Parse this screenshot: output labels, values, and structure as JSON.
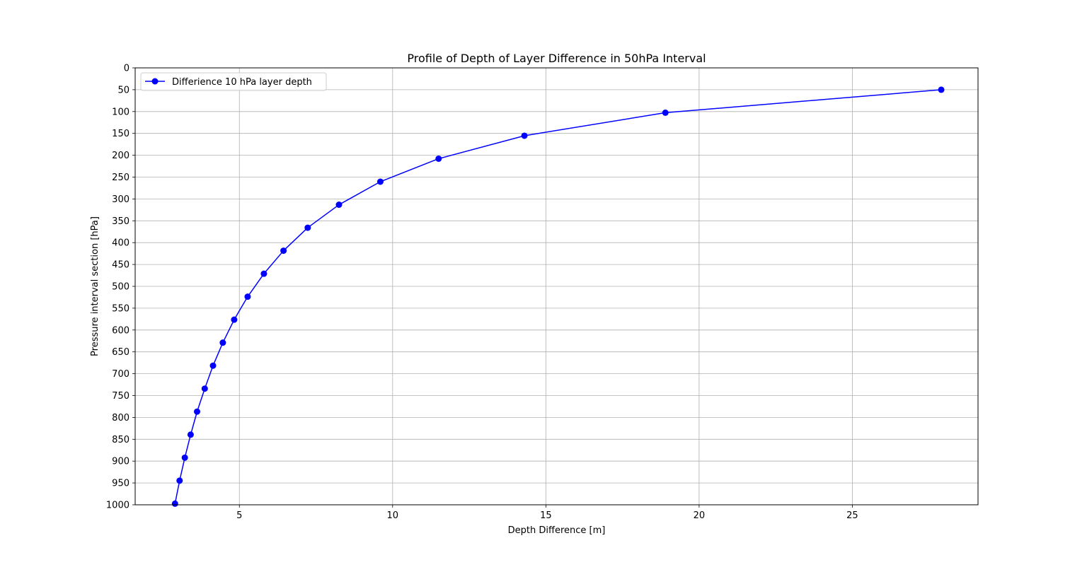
{
  "chart_data": {
    "type": "line",
    "title": "Profile of Depth of Layer Difference in 50hPa Interval",
    "xlabel": "Depth Difference [m]",
    "ylabel": "Pressure interval section [hPa]",
    "xlim": [
      1.6,
      29.1
    ],
    "ylim": [
      1000,
      0
    ],
    "y_inverted": true,
    "xticks": [
      5,
      10,
      15,
      20,
      25
    ],
    "yticks": [
      0,
      50,
      100,
      150,
      200,
      250,
      300,
      350,
      400,
      450,
      500,
      550,
      600,
      650,
      700,
      750,
      800,
      850,
      900,
      950,
      1000
    ],
    "grid": true,
    "legend_position": "upper-left",
    "series": [
      {
        "name": "Differience 10 hPa layer depth",
        "color": "#0000ff",
        "marker": "circle",
        "points": [
          {
            "x": 27.9,
            "y": 50
          },
          {
            "x": 18.9,
            "y": 102.6
          },
          {
            "x": 14.3,
            "y": 155.3
          },
          {
            "x": 11.5,
            "y": 207.9
          },
          {
            "x": 9.6,
            "y": 260.5
          },
          {
            "x": 8.25,
            "y": 313.2
          },
          {
            "x": 7.23,
            "y": 365.8
          },
          {
            "x": 6.44,
            "y": 418.4
          },
          {
            "x": 5.8,
            "y": 471.1
          },
          {
            "x": 5.27,
            "y": 523.7
          },
          {
            "x": 4.83,
            "y": 576.3
          },
          {
            "x": 4.46,
            "y": 628.9
          },
          {
            "x": 4.14,
            "y": 681.6
          },
          {
            "x": 3.87,
            "y": 734.2
          },
          {
            "x": 3.62,
            "y": 786.8
          },
          {
            "x": 3.41,
            "y": 839.5
          },
          {
            "x": 3.22,
            "y": 892.1
          },
          {
            "x": 3.05,
            "y": 944.7
          },
          {
            "x": 2.9,
            "y": 997.4
          }
        ]
      }
    ]
  }
}
